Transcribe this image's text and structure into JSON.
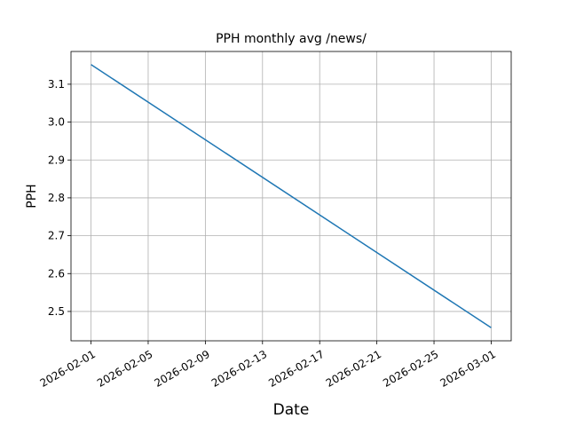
{
  "chart_data": {
    "type": "line",
    "title": "PPH monthly avg /news/",
    "x_label": "Date",
    "y_label": "PPH",
    "x": [
      "2026-02-01",
      "2026-03-01"
    ],
    "values": [
      3.152,
      2.457
    ],
    "color": "#1f77b4",
    "xlim": [
      "2026-01-30T14:24:00",
      "2026-03-02T09:36:00"
    ],
    "xticks": [
      "2026-02-01",
      "2026-02-05",
      "2026-02-09",
      "2026-02-13",
      "2026-02-17",
      "2026-02-21",
      "2026-02-25",
      "2026-03-01"
    ],
    "ylim": [
      2.4225,
      3.1865
    ],
    "yticks": [
      2.5,
      2.6,
      2.7,
      2.8,
      2.9,
      {
        "value": 3,
        "label": "3.0"
      },
      3.1
    ],
    "grid": true
  }
}
